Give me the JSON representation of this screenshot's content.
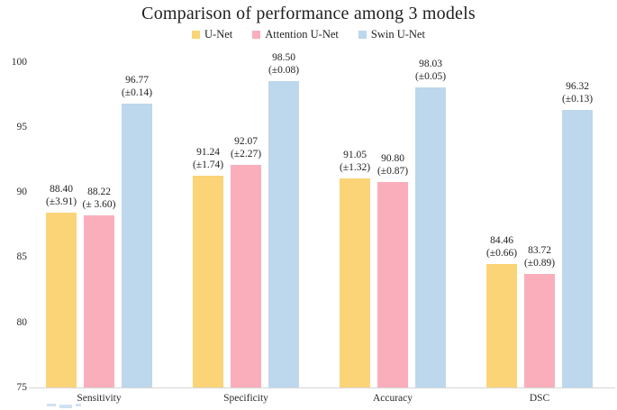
{
  "chart_data": {
    "type": "bar",
    "title": "Comparison of performance among 3 models",
    "categories": [
      "Sensitivity",
      "Specificity",
      "Accuracy",
      "DSC"
    ],
    "series": [
      {
        "name": "U-Net",
        "color": "#FBD478",
        "values": [
          88.4,
          91.24,
          91.05,
          84.46
        ],
        "sd": [
          3.91,
          1.74,
          1.32,
          0.66
        ],
        "value_labels": [
          "88.40",
          "91.24",
          "91.05",
          "84.46"
        ],
        "sd_labels": [
          "(±3.91)",
          "(±1.74)",
          "(±1.32)",
          "(±0.66)"
        ]
      },
      {
        "name": "Attention U-Net",
        "color": "#FAAEBC",
        "values": [
          88.22,
          92.07,
          90.8,
          83.72
        ],
        "sd": [
          3.6,
          2.27,
          0.87,
          0.89
        ],
        "value_labels": [
          "88.22",
          "92.07",
          "90.80",
          "83.72"
        ],
        "sd_labels": [
          "(± 3.60)",
          "(±2.27)",
          "(±0.87)",
          "(±0.89)"
        ]
      },
      {
        "name": "Swin U-Net",
        "color": "#BDD7EC",
        "values": [
          96.77,
          98.5,
          98.03,
          96.32
        ],
        "sd": [
          0.14,
          0.08,
          0.05,
          0.13
        ],
        "value_labels": [
          "96.77",
          "98.50",
          "98.03",
          "96.32"
        ],
        "sd_labels": [
          "(±0.14)",
          "(±0.08)",
          "(±0.05)",
          "(±0.13)"
        ]
      }
    ],
    "ylim": [
      75,
      100
    ],
    "yticks": [
      75,
      80,
      85,
      90,
      95,
      100
    ],
    "grid": false,
    "legend_position": "top",
    "axis_line_color": "#D6D6D6",
    "text_color": "#1F1F1F"
  }
}
